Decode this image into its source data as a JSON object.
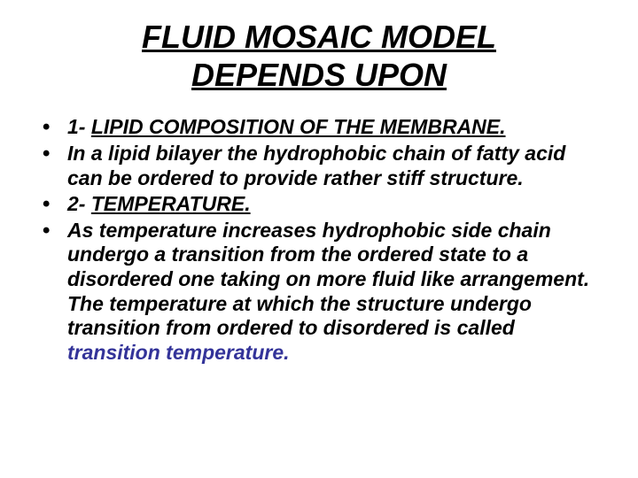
{
  "slide": {
    "title_line1": "FLUID MOSAIC MODEL",
    "title_line2": "DEPENDS UPON",
    "bullets": [
      {
        "prefix": "1- ",
        "underlined_text": "LIPID COMPOSITION OF THE MEMBRANE.",
        "suffix": ""
      },
      {
        "prefix": "",
        "underlined_text": "",
        "suffix": "In a lipid bilayer the hydrophobic chain of fatty acid can be ordered to provide rather stiff structure."
      },
      {
        "prefix": "2- ",
        "underlined_text": "TEMPERATURE.",
        "suffix": ""
      },
      {
        "prefix": "",
        "underlined_text": "",
        "suffix": "As temperature increases hydrophobic side chain undergo a transition from the ordered state to a disordered one taking on more fluid like arrangement. The temperature at which the structure undergo transition from ordered to disordered is called ",
        "highlighted": "transition temperature."
      }
    ]
  },
  "colors": {
    "background": "#ffffff",
    "text": "#000000",
    "highlight": "#333399"
  },
  "typography": {
    "title_fontsize": 36,
    "body_fontsize": 23,
    "font_family": "Arial"
  }
}
